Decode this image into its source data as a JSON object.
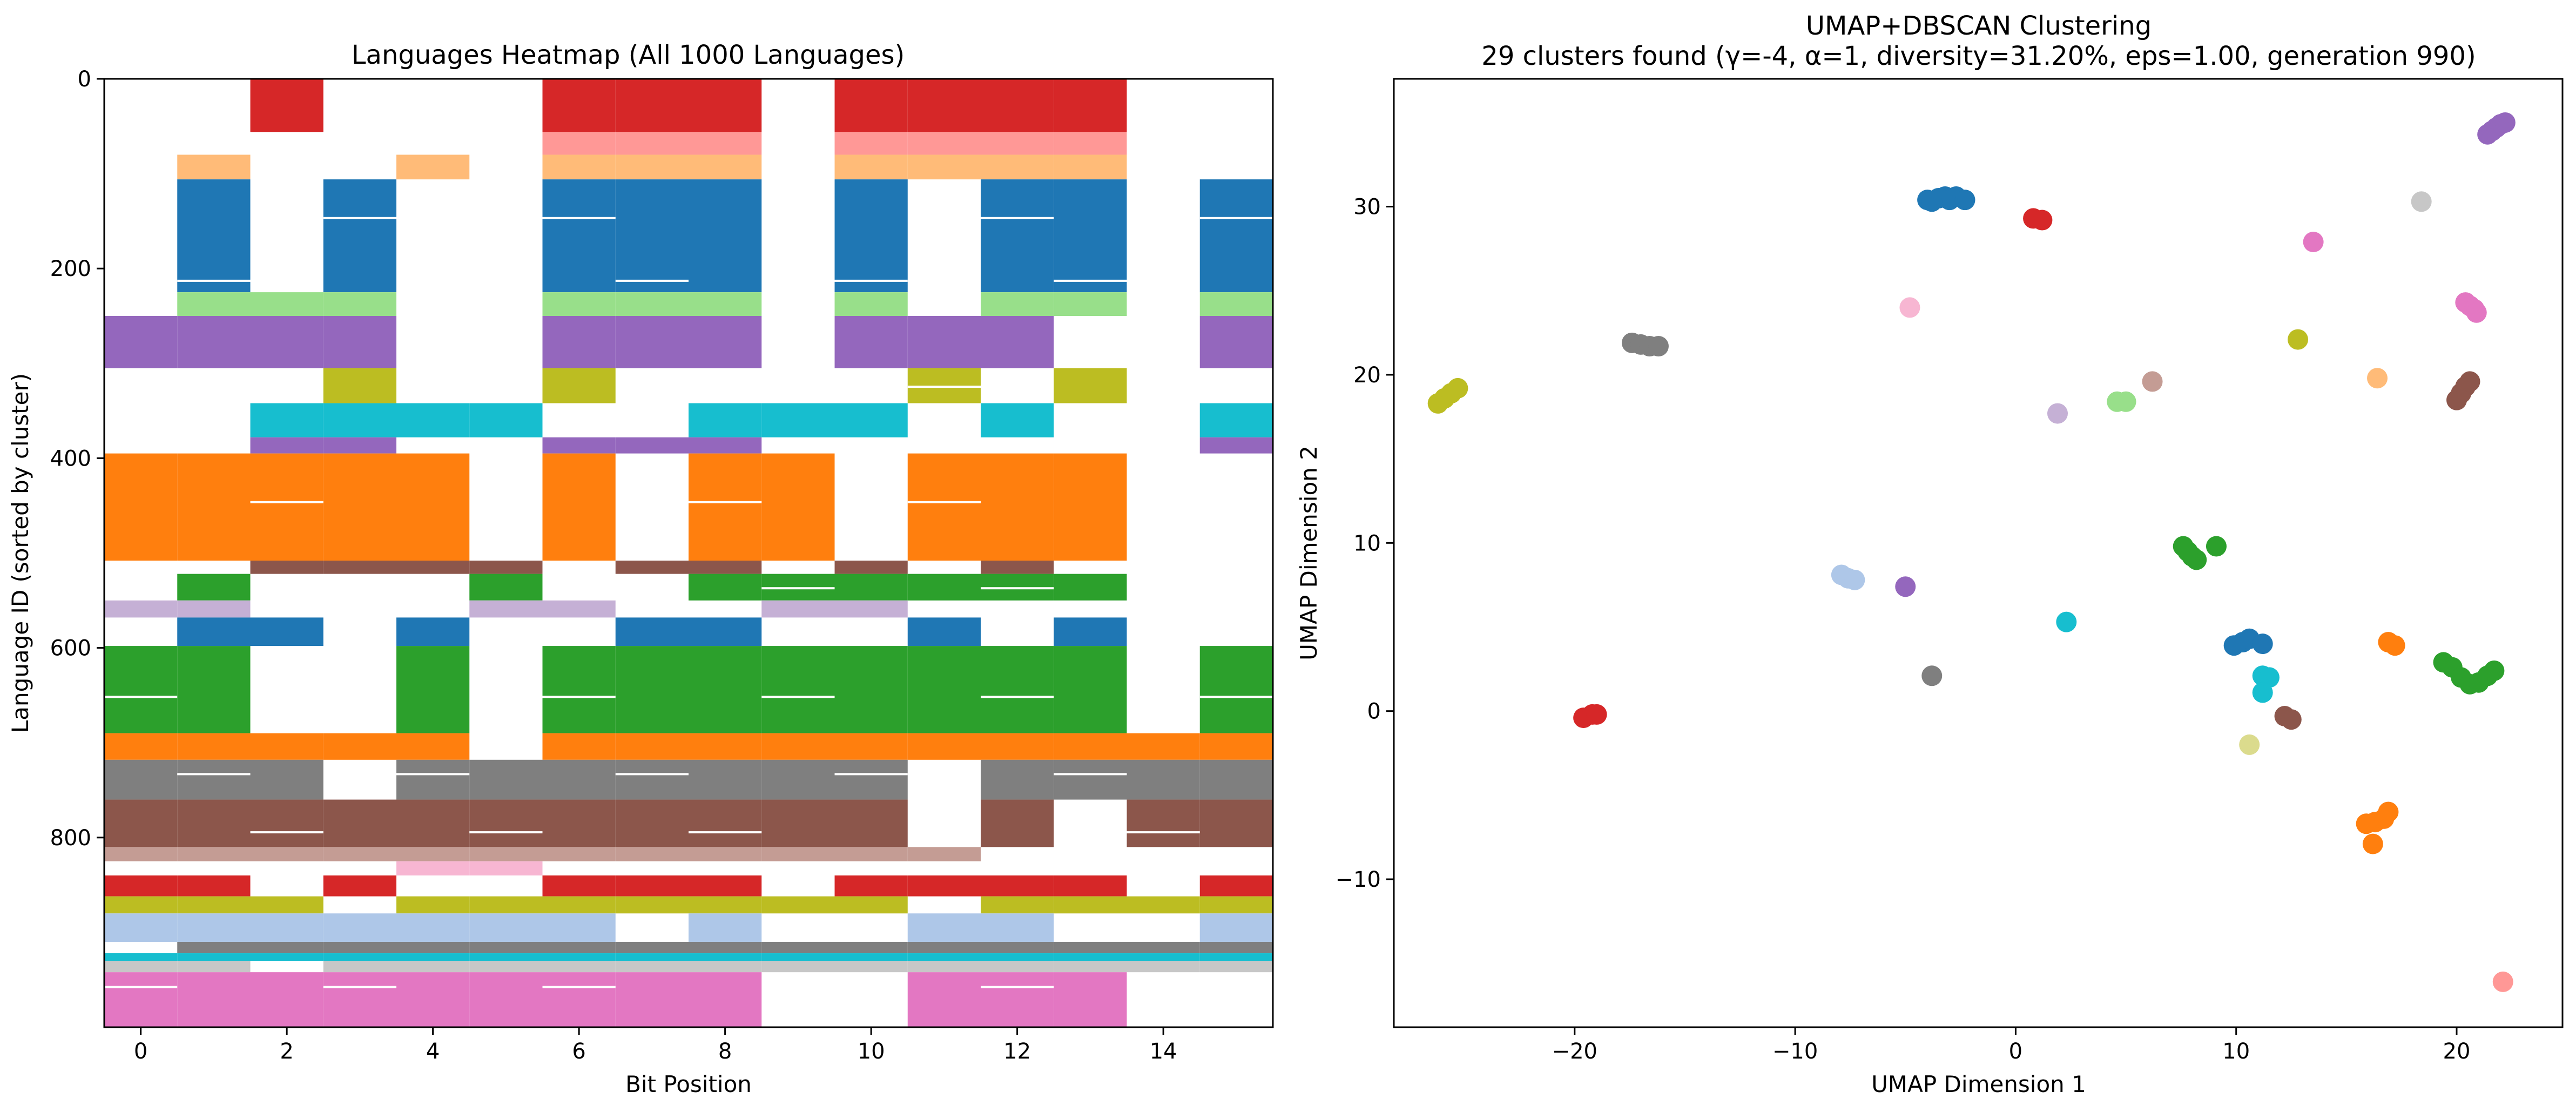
{
  "chart_data": [
    {
      "type": "heatmap",
      "title": "Languages Heatmap (All 1000 Languages)",
      "xlabel": "Bit Position",
      "ylabel": "Language ID (sorted by cluster)",
      "xlim": [
        -0.5,
        15.5
      ],
      "ylim": [
        1000,
        0
      ],
      "xticks": [
        0,
        2,
        4,
        6,
        8,
        10,
        12,
        14
      ],
      "yticks": [
        0,
        200,
        400,
        600,
        800
      ],
      "columns": 16,
      "background": "#ffffff",
      "blocks": [
        {
          "y0": 0,
          "y1": 56,
          "color": "#d62728",
          "cols": [
            2,
            6,
            7,
            8,
            10,
            11,
            12,
            13
          ]
        },
        {
          "y0": 56,
          "y1": 80,
          "color": "#ff9896",
          "cols": [
            6,
            7,
            8,
            10,
            11,
            12,
            13
          ]
        },
        {
          "y0": 80,
          "y1": 106,
          "color": "#ffbb78",
          "cols": [
            1,
            4,
            6,
            7,
            8,
            10,
            11,
            12,
            13
          ]
        },
        {
          "y0": 106,
          "y1": 225,
          "color": "#1f77b4",
          "cols": [
            1,
            3,
            6,
            7,
            8,
            10,
            12,
            13,
            15
          ]
        },
        {
          "y0": 225,
          "y1": 250,
          "color": "#98df8a",
          "cols": [
            1,
            2,
            3,
            6,
            7,
            8,
            10,
            12,
            13,
            15
          ]
        },
        {
          "y0": 250,
          "y1": 305,
          "color": "#9467bd",
          "cols": [
            0,
            1,
            2,
            3,
            6,
            7,
            8,
            10,
            11,
            12,
            15
          ]
        },
        {
          "y0": 305,
          "y1": 342,
          "color": "#bcbd22",
          "cols": [
            3,
            6,
            11,
            13
          ]
        },
        {
          "y0": 342,
          "y1": 378,
          "color": "#17becf",
          "cols": [
            2,
            3,
            4,
            5,
            8,
            9,
            10,
            12,
            15
          ]
        },
        {
          "y0": 378,
          "y1": 395,
          "color": "#9467bd",
          "cols": [
            2,
            3,
            6,
            7,
            8,
            15
          ]
        },
        {
          "y0": 395,
          "y1": 508,
          "color": "#ff7f0e",
          "cols": [
            0,
            1,
            2,
            3,
            4,
            6,
            8,
            9,
            11,
            12,
            13
          ]
        },
        {
          "y0": 508,
          "y1": 522,
          "color": "#8c564b",
          "cols": [
            2,
            3,
            4,
            5,
            7,
            8,
            10,
            12
          ]
        },
        {
          "y0": 522,
          "y1": 550,
          "color": "#2ca02c",
          "cols": [
            1,
            5,
            8,
            9,
            10,
            11,
            12,
            13
          ]
        },
        {
          "y0": 550,
          "y1": 568,
          "color": "#c5b0d5",
          "cols": [
            0,
            1,
            5,
            6,
            9,
            10
          ]
        },
        {
          "y0": 568,
          "y1": 598,
          "color": "#1f77b4",
          "cols": [
            1,
            2,
            4,
            7,
            8,
            11,
            13
          ]
        },
        {
          "y0": 598,
          "y1": 690,
          "color": "#2ca02c",
          "cols": [
            0,
            1,
            4,
            6,
            7,
            8,
            9,
            10,
            11,
            12,
            13,
            15
          ]
        },
        {
          "y0": 690,
          "y1": 718,
          "color": "#ff7f0e",
          "cols": [
            0,
            1,
            2,
            3,
            4,
            6,
            7,
            8,
            9,
            10,
            11,
            12,
            13,
            14,
            15
          ]
        },
        {
          "y0": 718,
          "y1": 760,
          "color": "#7f7f7f",
          "cols": [
            0,
            1,
            2,
            4,
            5,
            6,
            7,
            8,
            9,
            10,
            12,
            13,
            14,
            15
          ]
        },
        {
          "y0": 760,
          "y1": 810,
          "color": "#8c564b",
          "cols": [
            0,
            1,
            2,
            3,
            4,
            5,
            6,
            7,
            8,
            9,
            10,
            12,
            14,
            15
          ]
        },
        {
          "y0": 810,
          "y1": 825,
          "color": "#c49c94",
          "cols": [
            0,
            1,
            2,
            3,
            4,
            5,
            6,
            7,
            8,
            9,
            10,
            11
          ]
        },
        {
          "y0": 825,
          "y1": 840,
          "color": "#f7b6d2",
          "cols": [
            4,
            5
          ]
        },
        {
          "y0": 840,
          "y1": 862,
          "color": "#d62728",
          "cols": [
            0,
            1,
            3,
            6,
            7,
            8,
            10,
            11,
            12,
            13,
            15
          ]
        },
        {
          "y0": 862,
          "y1": 880,
          "color": "#bcbd22",
          "cols": [
            0,
            1,
            2,
            4,
            5,
            6,
            7,
            8,
            9,
            10,
            12,
            13,
            14,
            15
          ]
        },
        {
          "y0": 880,
          "y1": 910,
          "color": "#aec7e8",
          "cols": [
            0,
            1,
            2,
            3,
            4,
            5,
            6,
            8,
            11,
            12,
            15
          ]
        },
        {
          "y0": 910,
          "y1": 922,
          "color": "#7f7f7f",
          "cols": [
            1,
            2,
            3,
            4,
            5,
            6,
            7,
            8,
            9,
            10,
            11,
            12,
            13,
            14,
            15
          ]
        },
        {
          "y0": 922,
          "y1": 930,
          "color": "#17becf",
          "cols": [
            0,
            1,
            2,
            3,
            4,
            5,
            6,
            7,
            8,
            9,
            10,
            11,
            12,
            13,
            14,
            15
          ]
        },
        {
          "y0": 930,
          "y1": 942,
          "color": "#c7c7c7",
          "cols": [
            0,
            1,
            3,
            4,
            5,
            6,
            7,
            8,
            9,
            10,
            11,
            12,
            13,
            14,
            15
          ]
        },
        {
          "y0": 942,
          "y1": 1000,
          "color": "#e377c2",
          "cols": [
            0,
            1,
            2,
            3,
            4,
            5,
            6,
            7,
            8,
            11,
            12,
            13
          ]
        }
      ]
    },
    {
      "type": "scatter",
      "title": "UMAP+DBSCAN Clustering",
      "subtitle": "29 clusters found (γ=-4, α=1, diversity=31.20%, eps=1.00, generation 990)",
      "xlabel": "UMAP Dimension 1",
      "ylabel": "UMAP Dimension 2",
      "xlim": [
        -28.2,
        24.8
      ],
      "ylim": [
        -18.8,
        37.6
      ],
      "xticks": [
        -20,
        -10,
        0,
        10,
        20
      ],
      "yticks": [
        -10,
        0,
        10,
        20,
        30
      ],
      "series": [
        {
          "color": "#1f77b4",
          "points": [
            [
              -4,
              30.4
            ],
            [
              -3.5,
              30.5
            ],
            [
              -3.2,
              30.6
            ],
            [
              -3,
              30.4
            ],
            [
              -2.7,
              30.6
            ],
            [
              -2.3,
              30.4
            ],
            [
              -3.8,
              30.3
            ]
          ]
        },
        {
          "color": "#d62728",
          "points": [
            [
              0.8,
              29.3
            ],
            [
              1.2,
              29.2
            ]
          ]
        },
        {
          "color": "#9467bd",
          "points": [
            [
              21.4,
              34.3
            ],
            [
              21.6,
              34.5
            ],
            [
              21.8,
              34.7
            ],
            [
              22,
              34.9
            ],
            [
              22.2,
              35
            ]
          ]
        },
        {
          "color": "#c7c7c7",
          "points": [
            [
              18.4,
              30.3
            ]
          ]
        },
        {
          "color": "#e377c2",
          "points": [
            [
              13.5,
              27.9
            ]
          ]
        },
        {
          "color": "#f7b6d2",
          "points": [
            [
              -4.8,
              24
            ]
          ]
        },
        {
          "color": "#e377c2",
          "points": [
            [
              20.4,
              24.3
            ],
            [
              20.6,
              24.1
            ],
            [
              20.8,
              23.9
            ],
            [
              20.9,
              23.7
            ]
          ]
        },
        {
          "color": "#7f7f7f",
          "points": [
            [
              -17.4,
              21.9
            ],
            [
              -17,
              21.8
            ],
            [
              -16.6,
              21.7
            ],
            [
              -16.2,
              21.7
            ]
          ]
        },
        {
          "color": "#bcbd22",
          "points": [
            [
              12.8,
              22.1
            ]
          ]
        },
        {
          "color": "#bcbd22",
          "points": [
            [
              -26.2,
              18.3
            ],
            [
              -25.9,
              18.6
            ],
            [
              -25.6,
              18.9
            ],
            [
              -25.3,
              19.2
            ]
          ]
        },
        {
          "color": "#98df8a",
          "points": [
            [
              4.6,
              18.4
            ],
            [
              5,
              18.4
            ]
          ]
        },
        {
          "color": "#c49c94",
          "points": [
            [
              6.2,
              19.6
            ]
          ]
        },
        {
          "color": "#ffbb78",
          "points": [
            [
              16.4,
              19.8
            ]
          ]
        },
        {
          "color": "#8c564b",
          "points": [
            [
              20,
              18.5
            ],
            [
              20.2,
              18.9
            ],
            [
              20.4,
              19.3
            ],
            [
              20.6,
              19.6
            ]
          ]
        },
        {
          "color": "#c5b0d5",
          "points": [
            [
              1.9,
              17.7
            ]
          ]
        },
        {
          "color": "#2ca02c",
          "points": [
            [
              7.6,
              9.8
            ],
            [
              8,
              9.2
            ],
            [
              8.2,
              9
            ],
            [
              9.1,
              9.8
            ],
            [
              7.8,
              9.5
            ]
          ]
        },
        {
          "color": "#aec7e8",
          "points": [
            [
              -7.9,
              8.1
            ],
            [
              -7.6,
              7.9
            ],
            [
              -7.3,
              7.8
            ]
          ]
        },
        {
          "color": "#9467bd",
          "points": [
            [
              -5,
              7.4
            ]
          ]
        },
        {
          "color": "#17becf",
          "points": [
            [
              2.3,
              5.3
            ]
          ]
        },
        {
          "color": "#1f77b4",
          "points": [
            [
              9.9,
              3.9
            ],
            [
              10.3,
              4.1
            ],
            [
              10.6,
              4.3
            ],
            [
              11.2,
              4
            ]
          ]
        },
        {
          "color": "#ff7f0e",
          "points": [
            [
              16.9,
              4.1
            ],
            [
              17.2,
              3.9
            ]
          ]
        },
        {
          "color": "#2ca02c",
          "points": [
            [
              19.4,
              2.9
            ],
            [
              19.8,
              2.6
            ],
            [
              20.2,
              2
            ],
            [
              20.6,
              1.6
            ],
            [
              21,
              1.7
            ],
            [
              21.4,
              2.1
            ],
            [
              21.7,
              2.4
            ]
          ]
        },
        {
          "color": "#17becf",
          "points": [
            [
              11.2,
              2.1
            ],
            [
              11.5,
              2
            ],
            [
              11.2,
              1.1
            ]
          ]
        },
        {
          "color": "#7f7f7f",
          "points": [
            [
              -3.8,
              2.1
            ]
          ]
        },
        {
          "color": "#d62728",
          "points": [
            [
              -19.6,
              -0.4
            ],
            [
              -19.2,
              -0.2
            ],
            [
              -19,
              -0.2
            ]
          ]
        },
        {
          "color": "#8c564b",
          "points": [
            [
              12.2,
              -0.3
            ],
            [
              12.5,
              -0.5
            ]
          ]
        },
        {
          "color": "#dbdb8d",
          "points": [
            [
              10.6,
              -2
            ]
          ]
        },
        {
          "color": "#ff7f0e",
          "points": [
            [
              15.9,
              -6.7
            ],
            [
              16.3,
              -6.6
            ],
            [
              16.7,
              -6.4
            ],
            [
              16.9,
              -6
            ],
            [
              16.2,
              -7.9
            ]
          ]
        },
        {
          "color": "#ff9896",
          "points": [
            [
              22.1,
              -16.1
            ]
          ]
        }
      ]
    }
  ]
}
